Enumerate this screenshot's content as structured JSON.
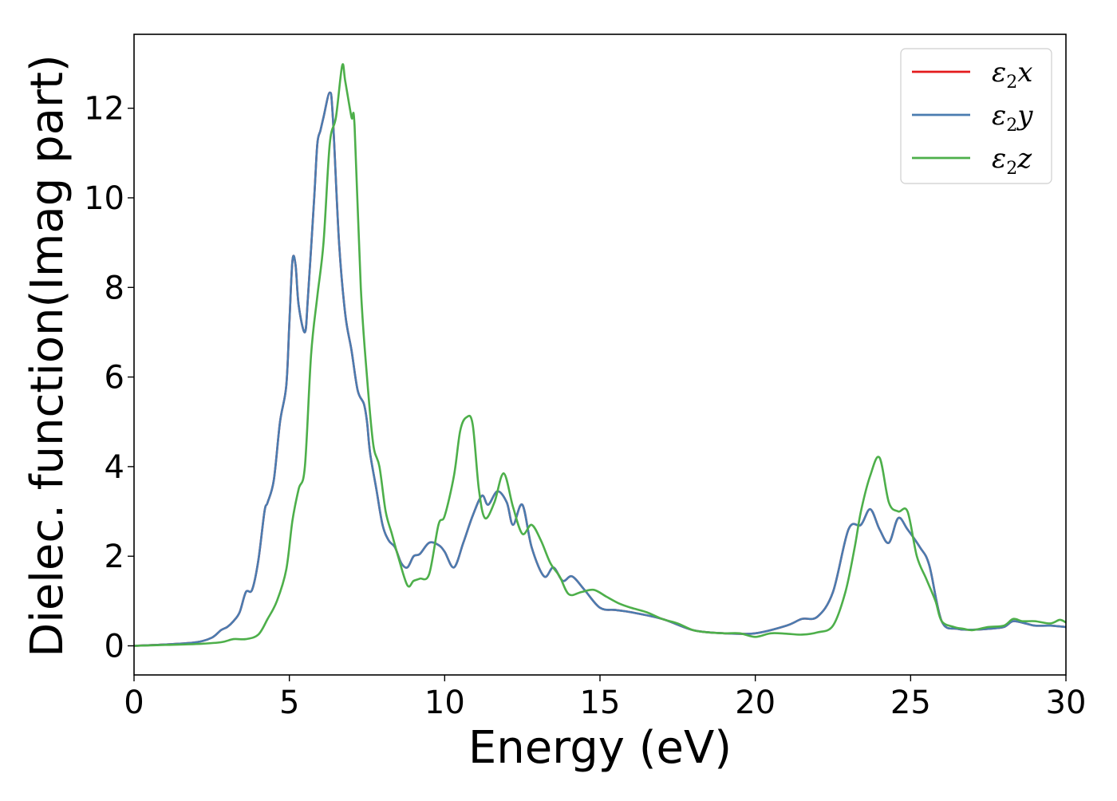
{
  "chart_data": {
    "type": "line",
    "title": "",
    "xlabel": "Energy (eV)",
    "ylabel": "Dielec. function(Imag part)",
    "xlim": [
      0,
      30
    ],
    "ylim": [
      -0.65,
      13.65
    ],
    "xticks": [
      0,
      5,
      10,
      15,
      20,
      25,
      30
    ],
    "yticks": [
      0,
      2,
      4,
      6,
      8,
      10,
      12
    ],
    "grid": false,
    "legend_position": "top-right",
    "series": [
      {
        "name": "ε₂x",
        "legend_base": "ε",
        "legend_sub": "2",
        "legend_suffix": "x",
        "color": "#e41a1c",
        "x": [
          0,
          1,
          2,
          2.5,
          2.8,
          3.0,
          3.2,
          3.4,
          3.6,
          3.8,
          4.0,
          4.2,
          4.3,
          4.5,
          4.7,
          4.9,
          5.0,
          5.1,
          5.2,
          5.3,
          5.5,
          5.6,
          5.8,
          5.9,
          6.0,
          6.1,
          6.3,
          6.4,
          6.6,
          6.8,
          7.0,
          7.2,
          7.4,
          7.5,
          7.6,
          7.8,
          8.0,
          8.2,
          8.4,
          8.6,
          8.8,
          9.0,
          9.2,
          9.5,
          9.8,
          10.0,
          10.3,
          10.6,
          10.9,
          11.2,
          11.4,
          11.7,
          12.0,
          12.2,
          12.5,
          12.8,
          13.2,
          13.5,
          13.8,
          14.1,
          14.5,
          15.0,
          15.5,
          16.0,
          17.0,
          18.0,
          19.0,
          20.0,
          21.0,
          21.5,
          22.0,
          22.5,
          23.0,
          23.4,
          23.7,
          24.0,
          24.3,
          24.6,
          24.9,
          25.3,
          25.6,
          26.0,
          26.5,
          27.0,
          27.5,
          28.0,
          28.3,
          28.7,
          29.0,
          29.5,
          30.0
        ],
        "y": [
          0.0,
          0.03,
          0.08,
          0.18,
          0.35,
          0.42,
          0.55,
          0.75,
          1.2,
          1.25,
          1.9,
          3.0,
          3.2,
          3.7,
          5.0,
          5.8,
          7.2,
          8.6,
          8.5,
          7.6,
          7.0,
          7.8,
          10.0,
          11.2,
          11.5,
          11.8,
          12.35,
          11.8,
          9.0,
          7.4,
          6.6,
          5.7,
          5.4,
          5.0,
          4.3,
          3.5,
          2.7,
          2.35,
          2.2,
          1.85,
          1.75,
          2.0,
          2.05,
          2.3,
          2.25,
          2.1,
          1.75,
          2.3,
          2.9,
          3.35,
          3.15,
          3.45,
          3.2,
          2.7,
          3.15,
          2.2,
          1.55,
          1.75,
          1.45,
          1.55,
          1.25,
          0.85,
          0.8,
          0.75,
          0.6,
          0.35,
          0.28,
          0.28,
          0.45,
          0.6,
          0.65,
          1.2,
          2.6,
          2.7,
          3.05,
          2.6,
          2.3,
          2.85,
          2.6,
          2.2,
          1.8,
          0.55,
          0.38,
          0.36,
          0.38,
          0.42,
          0.55,
          0.5,
          0.45,
          0.45,
          0.42
        ]
      },
      {
        "name": "ε₂y",
        "legend_base": "ε",
        "legend_sub": "2",
        "legend_suffix": "y",
        "color": "#4a7cb0",
        "x": [
          0,
          1,
          2,
          2.5,
          2.8,
          3.0,
          3.2,
          3.4,
          3.6,
          3.8,
          4.0,
          4.2,
          4.3,
          4.5,
          4.7,
          4.9,
          5.0,
          5.1,
          5.2,
          5.3,
          5.5,
          5.6,
          5.8,
          5.9,
          6.0,
          6.1,
          6.3,
          6.4,
          6.6,
          6.8,
          7.0,
          7.2,
          7.4,
          7.5,
          7.6,
          7.8,
          8.0,
          8.2,
          8.4,
          8.6,
          8.8,
          9.0,
          9.2,
          9.5,
          9.8,
          10.0,
          10.3,
          10.6,
          10.9,
          11.2,
          11.4,
          11.7,
          12.0,
          12.2,
          12.5,
          12.8,
          13.2,
          13.5,
          13.8,
          14.1,
          14.5,
          15.0,
          15.5,
          16.0,
          17.0,
          18.0,
          19.0,
          20.0,
          21.0,
          21.5,
          22.0,
          22.5,
          23.0,
          23.4,
          23.7,
          24.0,
          24.3,
          24.6,
          24.9,
          25.3,
          25.6,
          26.0,
          26.5,
          27.0,
          27.5,
          28.0,
          28.3,
          28.7,
          29.0,
          29.5,
          30.0
        ],
        "y": [
          0.0,
          0.03,
          0.08,
          0.18,
          0.35,
          0.42,
          0.55,
          0.75,
          1.2,
          1.25,
          1.9,
          3.0,
          3.2,
          3.7,
          5.0,
          5.8,
          7.2,
          8.6,
          8.5,
          7.6,
          7.0,
          7.8,
          10.0,
          11.2,
          11.5,
          11.8,
          12.35,
          11.8,
          9.0,
          7.4,
          6.6,
          5.7,
          5.4,
          5.0,
          4.3,
          3.5,
          2.7,
          2.35,
          2.2,
          1.85,
          1.75,
          2.0,
          2.05,
          2.3,
          2.25,
          2.1,
          1.75,
          2.3,
          2.9,
          3.35,
          3.15,
          3.45,
          3.2,
          2.7,
          3.15,
          2.2,
          1.55,
          1.75,
          1.45,
          1.55,
          1.25,
          0.85,
          0.8,
          0.75,
          0.6,
          0.35,
          0.28,
          0.28,
          0.45,
          0.6,
          0.65,
          1.2,
          2.6,
          2.7,
          3.05,
          2.6,
          2.3,
          2.85,
          2.6,
          2.2,
          1.8,
          0.55,
          0.38,
          0.36,
          0.38,
          0.42,
          0.55,
          0.5,
          0.45,
          0.45,
          0.42
        ]
      },
      {
        "name": "ε₂z",
        "legend_base": "ε",
        "legend_sub": "2",
        "legend_suffix": "z",
        "color": "#4daf4a",
        "x": [
          0,
          1,
          2,
          2.8,
          3.2,
          3.6,
          4.0,
          4.3,
          4.6,
          4.9,
          5.1,
          5.3,
          5.5,
          5.7,
          5.9,
          6.1,
          6.3,
          6.5,
          6.7,
          6.8,
          7.0,
          7.1,
          7.3,
          7.5,
          7.7,
          7.9,
          8.1,
          8.3,
          8.5,
          8.8,
          9.0,
          9.2,
          9.5,
          9.8,
          10.0,
          10.3,
          10.5,
          10.7,
          10.9,
          11.1,
          11.3,
          11.6,
          11.9,
          12.2,
          12.5,
          12.8,
          13.1,
          13.4,
          13.7,
          14.0,
          14.4,
          14.8,
          15.2,
          15.6,
          16.0,
          16.5,
          17.0,
          17.5,
          18.0,
          18.5,
          19.0,
          19.5,
          20.0,
          20.5,
          21.0,
          21.5,
          22.0,
          22.5,
          22.9,
          23.2,
          23.4,
          23.7,
          24.0,
          24.3,
          24.6,
          24.9,
          25.2,
          25.5,
          25.8,
          26.0,
          26.4,
          26.7,
          27.0,
          27.5,
          28.0,
          28.3,
          28.6,
          29.0,
          29.5,
          29.8,
          30.0
        ],
        "y": [
          0.0,
          0.02,
          0.04,
          0.08,
          0.15,
          0.15,
          0.25,
          0.6,
          1.0,
          1.7,
          2.8,
          3.5,
          4.0,
          6.5,
          7.8,
          9.0,
          11.2,
          11.8,
          12.95,
          12.6,
          11.8,
          11.6,
          8.0,
          6.0,
          4.5,
          4.0,
          3.0,
          2.5,
          2.0,
          1.35,
          1.45,
          1.5,
          1.6,
          2.7,
          2.9,
          3.8,
          4.8,
          5.1,
          4.95,
          3.5,
          2.85,
          3.2,
          3.85,
          3.1,
          2.5,
          2.7,
          2.35,
          1.85,
          1.55,
          1.15,
          1.2,
          1.25,
          1.1,
          0.95,
          0.85,
          0.75,
          0.6,
          0.5,
          0.35,
          0.3,
          0.28,
          0.28,
          0.2,
          0.28,
          0.27,
          0.25,
          0.3,
          0.45,
          1.2,
          2.2,
          3.0,
          3.8,
          4.2,
          3.2,
          3.0,
          3.0,
          2.0,
          1.5,
          1.0,
          0.55,
          0.42,
          0.38,
          0.35,
          0.42,
          0.45,
          0.6,
          0.55,
          0.55,
          0.5,
          0.58,
          0.52
        ]
      }
    ]
  }
}
